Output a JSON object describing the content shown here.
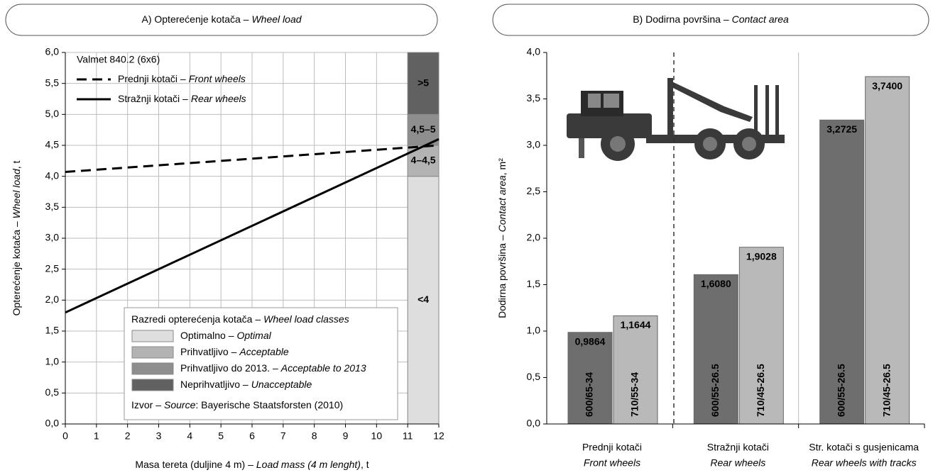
{
  "chart_data": [
    {
      "type": "line",
      "title": [
        "A) Opterećenje kotača –",
        "Wheel load"
      ],
      "xlabel": [
        "Masa tereta (duljine 4 m) –",
        "Load mass (4 m lenght)",
        ", t"
      ],
      "ylabel": [
        "Opterećenje kotača –",
        "Wheel load",
        ", t"
      ],
      "xlim": [
        0,
        12
      ],
      "ylim": [
        0,
        6
      ],
      "xticks": [
        0,
        1,
        2,
        3,
        4,
        5,
        6,
        7,
        8,
        9,
        10,
        11,
        12
      ],
      "yticks": [
        {
          "value": 0,
          "label": "0,0"
        },
        {
          "value": 0.5,
          "label": "0,5"
        },
        {
          "value": 1,
          "label": "1,0"
        },
        {
          "value": 1.5,
          "label": "1,5"
        },
        {
          "value": 2,
          "label": "2,0"
        },
        {
          "value": 2.5,
          "label": "2,5"
        },
        {
          "value": 3,
          "label": "3,0"
        },
        {
          "value": 3.5,
          "label": "3,5"
        },
        {
          "value": 4,
          "label": "4,0"
        },
        {
          "value": 4.5,
          "label": "4,5"
        },
        {
          "value": 5,
          "label": "5,0"
        },
        {
          "value": 5.5,
          "label": "5,5"
        },
        {
          "value": 6,
          "label": "6,0"
        }
      ],
      "grid": true,
      "legend_title": "Valmet 840.2 (6x6)",
      "x": [
        0,
        12
      ],
      "series": [
        {
          "name": [
            "Prednji kotači –",
            "Front wheels"
          ],
          "color": "#000000",
          "dashed": true,
          "values": [
            4.07,
            4.5
          ]
        },
        {
          "name": [
            "Stražnji kotači –",
            "Rear wheels"
          ],
          "color": "#000000",
          "dashed": false,
          "values": [
            1.8,
            4.6
          ]
        }
      ],
      "class_range": [
        11,
        12
      ],
      "classes_title": [
        "Razredi opterećenja kotača –",
        "Wheel load classes"
      ],
      "classes": [
        {
          "from": 0,
          "to": 4,
          "label": "<4",
          "name": [
            "Optimalno –",
            "Optimal"
          ],
          "color": "#dedede",
          "text_color": "#000000"
        },
        {
          "from": 4,
          "to": 4.5,
          "label": "4–4,5",
          "name": [
            "Prihvatljivo –",
            "Acceptable"
          ],
          "color": "#b3b3b3",
          "text_color": "#000000"
        },
        {
          "from": 4.5,
          "to": 5,
          "label": "4,5–5",
          "name": [
            "Prihvatljivo do 2013. –",
            "Acceptable to 2013"
          ],
          "color": "#8e8e8e",
          "text_color": "#ffffff"
        },
        {
          "from": 5,
          "to": 6,
          "label": ">5",
          "name": [
            "Neprihvatljivo –",
            "Unacceptable"
          ],
          "color": "#616161",
          "text_color": "#ffffff"
        }
      ],
      "source": [
        "Izvor –",
        "Source",
        ": Bayerische Staatsforsten (2010)"
      ]
    },
    {
      "type": "bar",
      "title": [
        "B) Dodirna površina –",
        "Contact area"
      ],
      "ylabel": [
        "Dodirna površina –",
        "Contact area",
        ", m²"
      ],
      "ylim": [
        0,
        4
      ],
      "yticks": [
        {
          "value": 0,
          "label": "0,0"
        },
        {
          "value": 0.5,
          "label": "0,5"
        },
        {
          "value": 1,
          "label": "1,0"
        },
        {
          "value": 1.5,
          "label": "1,5"
        },
        {
          "value": 2,
          "label": "2,0"
        },
        {
          "value": 2.5,
          "label": "2,5"
        },
        {
          "value": 3,
          "label": "3,0"
        },
        {
          "value": 3.5,
          "label": "3,5"
        },
        {
          "value": 4,
          "label": "4,0"
        }
      ],
      "categories": [
        [
          "Prednji kotači",
          "Front wheels"
        ],
        [
          "Stražnji kotači",
          "Rear wheels"
        ],
        [
          "Str. kotači s gusjenicama",
          "Rear wheels with tracks"
        ]
      ],
      "series": [
        {
          "color": "#6e6e6e",
          "text_color": "#ffffff",
          "bar_labels": [
            "600/65-34",
            "600/55-26.5",
            "600/55-26.5"
          ],
          "values": [
            0.9864,
            1.608,
            3.2725
          ],
          "value_labels": [
            "0,9864",
            "1,6080",
            "3,2725"
          ]
        },
        {
          "color": "#b9b9b9",
          "text_color": "#000000",
          "bar_labels": [
            "710/55-34",
            "710/45-26.5",
            "710/45-26.5"
          ],
          "values": [
            1.1644,
            1.9028,
            3.74
          ],
          "value_labels": [
            "1,1644",
            "1,9028",
            "3,7400"
          ]
        }
      ]
    }
  ]
}
